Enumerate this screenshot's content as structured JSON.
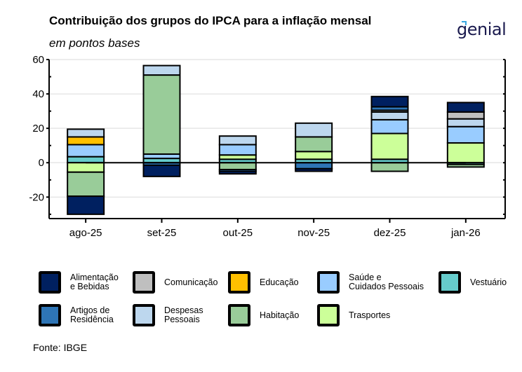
{
  "header": {
    "title": "Contribuição dos grupos do IPCA para a inflação mensal",
    "subtitle": "em pontos bases",
    "logo_text": "genial"
  },
  "footer": {
    "source": "Fonte: IBGE"
  },
  "chart_data": {
    "type": "bar",
    "stacked": true,
    "title": "Contribuição dos grupos do IPCA para a inflação mensal",
    "subtitle": "em pontos bases",
    "xlabel": "",
    "ylabel": "",
    "ylim": [
      -32.5,
      60
    ],
    "yticks": [
      60,
      40,
      20,
      0,
      -20
    ],
    "ytick_labels": [
      "60",
      "40",
      "20",
      "0",
      "-20"
    ],
    "grid": true,
    "legend_position": "bottom",
    "categories": [
      "ago-25",
      "set-25",
      "out-25",
      "nov-25",
      "dez-25",
      "jan-26"
    ],
    "series": [
      {
        "name": "Alimentação e Bebidas",
        "legend_label": "Alimentação\ne Bebidas",
        "color": "#002060",
        "values": [
          -10.5,
          -6.5,
          -1.5,
          -1.5,
          6.0,
          5.5
        ]
      },
      {
        "name": "Artigos de Residência",
        "legend_label": "Artigos de\nResidência",
        "color": "#2e75b6",
        "values": [
          0,
          -1.5,
          -1.0,
          -3.5,
          2.0,
          0
        ]
      },
      {
        "name": "Comunicação",
        "legend_label": "Comunicação",
        "color": "#bfbfbf",
        "values": [
          0,
          0,
          0,
          0,
          1.0,
          4.0
        ]
      },
      {
        "name": "Despesas Pessoais",
        "legend_label": "Despesas\nPessoais",
        "color": "#bdd7ee",
        "values": [
          4.5,
          5.5,
          5.0,
          8.0,
          4.5,
          4.5
        ]
      },
      {
        "name": "Educação",
        "legend_label": "Educação",
        "color": "#ffc000",
        "values": [
          4.5,
          0,
          0,
          0,
          0,
          0
        ]
      },
      {
        "name": "Habitação",
        "legend_label": "Habitação",
        "color": "#99cc99",
        "values": [
          -14.0,
          46.0,
          -4.0,
          8.5,
          -5.0,
          -1.5
        ]
      },
      {
        "name": "Saúde e Cuidados Pessoais",
        "legend_label": "Saúde e\nCuidados Pessoais",
        "color": "#99ccff",
        "values": [
          7.0,
          2.5,
          6.0,
          0,
          8.0,
          9.5
        ]
      },
      {
        "name": "Trasportes",
        "legend_label": "Trasportes",
        "color": "#ccff99",
        "values": [
          -5.5,
          0,
          2.5,
          4.5,
          15.0,
          11.5
        ]
      },
      {
        "name": "Vestuário",
        "legend_label": "Vestuário",
        "color": "#66cccc",
        "values": [
          3.5,
          2.5,
          2.0,
          2.0,
          2.0,
          -1.0
        ]
      }
    ],
    "stack_order_positive": [
      "Vestuário",
      "Trasportes",
      "Saúde e Cuidados Pessoais",
      "Habitação",
      "Educação",
      "Despesas Pessoais",
      "Comunicação",
      "Artigos de Residência",
      "Alimentação e Bebidas"
    ],
    "stack_order_negative": [
      "Vestuário",
      "Trasportes",
      "Habitação",
      "Artigos de Residência",
      "Alimentação e Bebidas"
    ]
  },
  "legend": {
    "items": [
      {
        "label": "Alimentação\ne Bebidas",
        "color": "#002060"
      },
      {
        "label": "Comunicação",
        "color": "#bfbfbf"
      },
      {
        "label": "Educação",
        "color": "#ffc000"
      },
      {
        "label": "Saúde e\nCuidados Pessoais",
        "color": "#99ccff"
      },
      {
        "label": "Vestuário",
        "color": "#66cccc"
      },
      {
        "label": "Artigos de\nResidência",
        "color": "#2e75b6"
      },
      {
        "label": "Despesas\nPessoais",
        "color": "#bdd7ee"
      },
      {
        "label": "Habitação",
        "color": "#99cc99"
      },
      {
        "label": "Trasportes",
        "color": "#ccff99"
      }
    ]
  }
}
